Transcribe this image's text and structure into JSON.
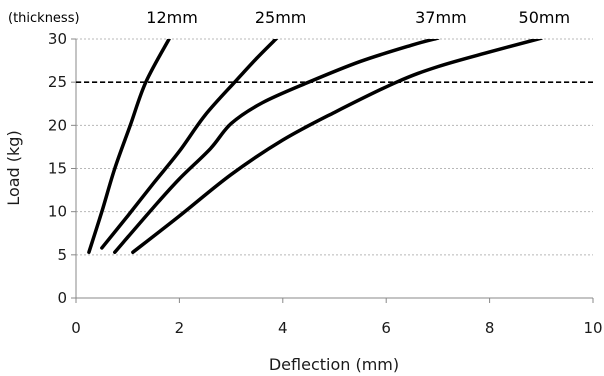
{
  "chart_data": {
    "type": "line",
    "xlabel": "Deflection (mm)",
    "ylabel": "Load (kg)",
    "annotation": "(thickness)",
    "xlim": [
      0,
      10
    ],
    "ylim": [
      0,
      30
    ],
    "x_ticks": [
      0,
      2,
      4,
      6,
      8,
      10
    ],
    "y_ticks": [
      0,
      5,
      10,
      15,
      20,
      25,
      30
    ],
    "grid": "horizontal dashed",
    "reference_line": {
      "y": 25,
      "style": "dashed"
    },
    "series": [
      {
        "name": "12mm",
        "points": [
          [
            0.25,
            5.3
          ],
          [
            0.5,
            10
          ],
          [
            0.75,
            15
          ],
          [
            1.05,
            20
          ],
          [
            1.35,
            25
          ],
          [
            1.8,
            30
          ]
        ]
      },
      {
        "name": "25mm",
        "points": [
          [
            0.5,
            5.8
          ],
          [
            1.0,
            9.5
          ],
          [
            1.5,
            13.3
          ],
          [
            2.0,
            17.0
          ],
          [
            2.5,
            21.2
          ],
          [
            3.1,
            25.2
          ],
          [
            3.5,
            27.8
          ],
          [
            3.9,
            30.2
          ]
        ]
      },
      {
        "name": "37mm",
        "points": [
          [
            0.75,
            5.3
          ],
          [
            1.5,
            10.5
          ],
          [
            2.0,
            13.8
          ],
          [
            2.6,
            17.3
          ],
          [
            3.0,
            20.2
          ],
          [
            3.6,
            22.6
          ],
          [
            4.5,
            25.0
          ],
          [
            5.5,
            27.4
          ],
          [
            6.5,
            29.3
          ],
          [
            7.0,
            30.1
          ]
        ]
      },
      {
        "name": "50mm",
        "points": [
          [
            1.1,
            5.3
          ],
          [
            2.0,
            9.5
          ],
          [
            3.0,
            14.3
          ],
          [
            4.0,
            18.3
          ],
          [
            5.0,
            21.5
          ],
          [
            6.2,
            25.0
          ],
          [
            7.0,
            26.8
          ],
          [
            8.0,
            28.5
          ],
          [
            9.0,
            30.1
          ]
        ]
      }
    ]
  }
}
